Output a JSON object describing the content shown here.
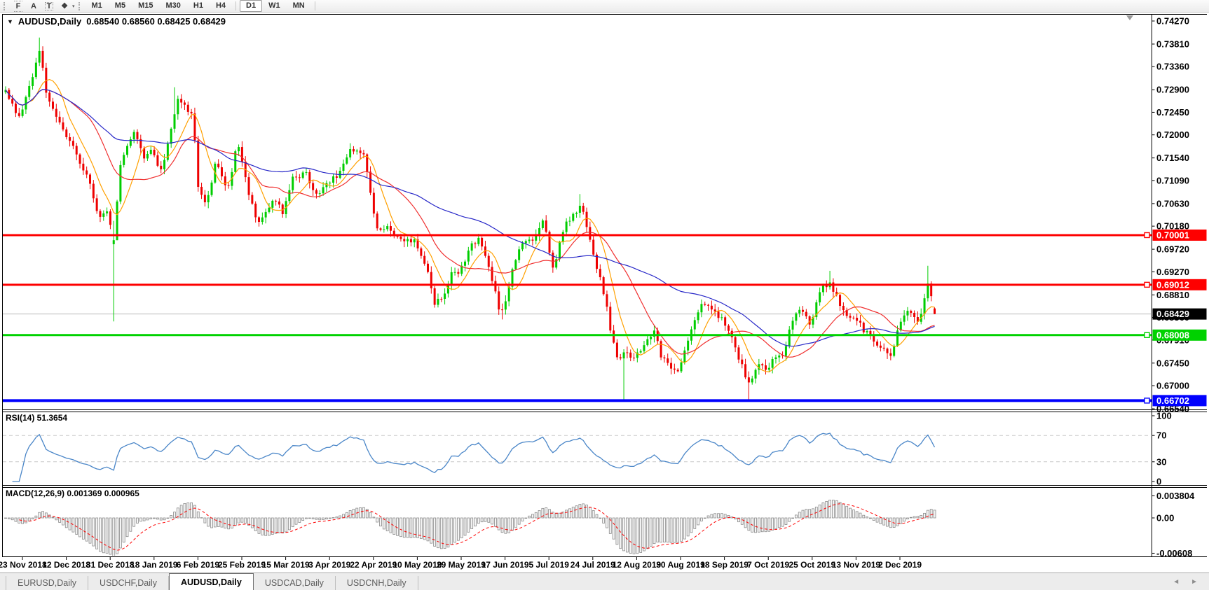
{
  "toolbar": {
    "tools": [
      {
        "name": "fibonacci-tool",
        "glyph": "F",
        "style": "fib"
      },
      {
        "name": "text-tool",
        "glyph": "A",
        "style": "plain"
      },
      {
        "name": "text-label-tool",
        "glyph": "T",
        "style": "boxed"
      },
      {
        "name": "arrows-tool",
        "glyph": "❖",
        "style": "plain"
      }
    ],
    "dropdown_caret": "▾",
    "timeframes": [
      "M1",
      "M5",
      "M15",
      "M30",
      "H1",
      "H4",
      "D1",
      "W1",
      "MN"
    ],
    "active_timeframe": "D1",
    "separators_after": [
      "H4",
      "MN"
    ]
  },
  "chart": {
    "expand_glyph": "▼",
    "symbol_text": "AUDUSD,Daily",
    "ohlc_text": "0.68540 0.68560 0.68425 0.68429"
  },
  "price_axis": {
    "labels": [
      "0.74270",
      "0.73810",
      "0.73360",
      "0.72900",
      "0.72450",
      "0.72000",
      "0.71540",
      "0.71090",
      "0.70630",
      "0.70180",
      "0.69720",
      "0.69270",
      "0.68810",
      "0.68360",
      "0.67910",
      "0.67450",
      "0.67000",
      "0.66540"
    ]
  },
  "price_lines": [
    {
      "label": "0.70001",
      "price": 0.70001,
      "color": "#fe0000",
      "thickness": 3,
      "text_color": "#ffffff"
    },
    {
      "label": "0.69012",
      "price": 0.69012,
      "color": "#fe0000",
      "thickness": 3,
      "text_color": "#ffffff"
    },
    {
      "label": "0.68008",
      "price": 0.68008,
      "color": "#00d200",
      "thickness": 3,
      "text_color": "#ffffff"
    },
    {
      "label": "0.66702",
      "price": 0.66702,
      "color": "#0000fe",
      "thickness": 4,
      "text_color": "#ffffff"
    }
  ],
  "current_price": {
    "label": "0.68429",
    "price": 0.68429,
    "line_color": "#b9b9b9",
    "box_color": "#000000",
    "text_color": "#ffffff"
  },
  "rsi": {
    "label": "RSI(14) 51.3654",
    "axis_labels": [
      {
        "text": "100",
        "value": 100
      },
      {
        "text": "70",
        "value": 70
      },
      {
        "text": "30",
        "value": 30
      },
      {
        "text": "0",
        "value": 0
      }
    ],
    "dashed_levels": [
      70,
      30
    ],
    "line_color": "#4a86c8",
    "level_color": "#c9c9c9"
  },
  "macd": {
    "label": "MACD(12,26,9) 0.001369 0.000965",
    "axis_labels": [
      {
        "text": "0.003804",
        "value": 0.003804
      },
      {
        "text": "0.00",
        "value": 0
      },
      {
        "text": "-0.00608",
        "value": -0.00608
      }
    ],
    "bar_stroke": "#8a8a8a",
    "bar_fill": "#f6f6f6",
    "signal_color": "#fe0000"
  },
  "date_axis": [
    "23 Nov 2018",
    "12 Dec 2018",
    "31 Dec 2018",
    "18 Jan 2019",
    "6 Feb 2019",
    "25 Feb 2019",
    "15 Mar 2019",
    "3 Apr 2019",
    "22 Apr 2019",
    "10 May 2019",
    "29 May 2019",
    "17 Jun 2019",
    "5 Jul 2019",
    "24 Jul 2019",
    "12 Aug 2019",
    "30 Aug 2019",
    "18 Sep 2019",
    "7 Oct 2019",
    "25 Oct 2019",
    "13 Nov 2019",
    "2 Dec 2019"
  ],
  "tabs": {
    "items": [
      "EURUSD,Daily",
      "USDCHF,Daily",
      "AUDUSD,Daily",
      "USDCAD,Daily",
      "USDCNH,Daily"
    ],
    "active": "AUDUSD,Daily",
    "left_arrow": "◄",
    "right_arrow": "►"
  },
  "chart_data": {
    "type": "candlestick",
    "symbol": "AUDUSD",
    "timeframe": "Daily",
    "open": 0.6854,
    "high": 0.6856,
    "low": 0.68425,
    "close": 0.68429,
    "y_range": [
      0.6654,
      0.7427
    ],
    "grid": false,
    "colors": {
      "bull": "#00cd00",
      "bear": "#ee0000",
      "ma_fast": "#ffa000",
      "ma_mid": "#f03030",
      "ma_slow": "#2828c8"
    },
    "moving_averages": [
      {
        "name": "fast",
        "period": 8,
        "color_key": "ma_fast"
      },
      {
        "name": "mid",
        "period": 20,
        "color_key": "ma_mid"
      },
      {
        "name": "slow",
        "period": 55,
        "color_key": "ma_slow"
      }
    ],
    "indicators": [
      {
        "name": "RSI",
        "period": 14,
        "current": 51.3654
      },
      {
        "name": "MACD",
        "fast": 12,
        "slow": 26,
        "signal": 9,
        "main_current": 0.001369,
        "signal_current": 0.000965
      }
    ],
    "price_path": [
      [
        8,
        0.7285
      ],
      [
        28,
        0.7232
      ],
      [
        43,
        0.73
      ],
      [
        57,
        0.7375
      ],
      [
        67,
        0.727
      ],
      [
        91,
        0.721
      ],
      [
        105,
        0.7175
      ],
      [
        125,
        0.7115
      ],
      [
        140,
        0.704
      ],
      [
        153,
        0.7045
      ],
      [
        162,
        0.6985
      ],
      [
        172,
        0.714
      ],
      [
        190,
        0.721
      ],
      [
        206,
        0.7155
      ],
      [
        216,
        0.717
      ],
      [
        230,
        0.7125
      ],
      [
        254,
        0.727
      ],
      [
        276,
        0.7235
      ],
      [
        281,
        0.7105
      ],
      [
        295,
        0.706
      ],
      [
        307,
        0.714
      ],
      [
        312,
        0.7135
      ],
      [
        325,
        0.709
      ],
      [
        339,
        0.7185
      ],
      [
        355,
        0.708
      ],
      [
        369,
        0.702
      ],
      [
        390,
        0.7075
      ],
      [
        404,
        0.7045
      ],
      [
        418,
        0.7115
      ],
      [
        438,
        0.7125
      ],
      [
        450,
        0.7075
      ],
      [
        467,
        0.7105
      ],
      [
        486,
        0.7125
      ],
      [
        500,
        0.7175
      ],
      [
        511,
        0.7165
      ],
      [
        520,
        0.7155
      ],
      [
        536,
        0.7015
      ],
      [
        555,
        0.7015
      ],
      [
        570,
        0.699
      ],
      [
        592,
        0.699
      ],
      [
        610,
        0.6925
      ],
      [
        620,
        0.6865
      ],
      [
        632,
        0.688
      ],
      [
        645,
        0.6925
      ],
      [
        655,
        0.692
      ],
      [
        670,
        0.6975
      ],
      [
        685,
        0.6995
      ],
      [
        700,
        0.6925
      ],
      [
        712,
        0.6855
      ],
      [
        718,
        0.6845
      ],
      [
        730,
        0.6925
      ],
      [
        745,
        0.6985
      ],
      [
        762,
        0.6995
      ],
      [
        775,
        0.703
      ],
      [
        790,
        0.693
      ],
      [
        805,
        0.702
      ],
      [
        829,
        0.706
      ],
      [
        843,
        0.698
      ],
      [
        858,
        0.6905
      ],
      [
        867,
        0.6845
      ],
      [
        872,
        0.68
      ],
      [
        882,
        0.6755
      ],
      [
        891,
        0.6765
      ],
      [
        906,
        0.6755
      ],
      [
        920,
        0.678
      ],
      [
        934,
        0.6815
      ],
      [
        944,
        0.6755
      ],
      [
        958,
        0.6735
      ],
      [
        968,
        0.673
      ],
      [
        987,
        0.681
      ],
      [
        1001,
        0.686
      ],
      [
        1011,
        0.6865
      ],
      [
        1021,
        0.6845
      ],
      [
        1031,
        0.683
      ],
      [
        1045,
        0.68
      ],
      [
        1055,
        0.675
      ],
      [
        1070,
        0.67
      ],
      [
        1080,
        0.6745
      ],
      [
        1094,
        0.673
      ],
      [
        1104,
        0.676
      ],
      [
        1118,
        0.6755
      ],
      [
        1128,
        0.682
      ],
      [
        1142,
        0.6855
      ],
      [
        1156,
        0.682
      ],
      [
        1170,
        0.689
      ],
      [
        1185,
        0.6905
      ],
      [
        1199,
        0.686
      ],
      [
        1209,
        0.684
      ],
      [
        1219,
        0.684
      ],
      [
        1233,
        0.681
      ],
      [
        1243,
        0.6795
      ],
      [
        1257,
        0.6775
      ],
      [
        1267,
        0.676
      ],
      [
        1272,
        0.6754
      ],
      [
        1282,
        0.682
      ],
      [
        1292,
        0.685
      ],
      [
        1301,
        0.684
      ],
      [
        1311,
        0.682
      ],
      [
        1320,
        0.688
      ],
      [
        1325,
        0.6905
      ],
      [
        1330,
        0.687
      ],
      [
        1337,
        0.68429
      ]
    ],
    "wick_events": [
      {
        "x": 57,
        "high": 0.7394
      },
      {
        "x": 162,
        "low": 0.6828,
        "open": 0.6982,
        "close": 0.699
      },
      {
        "x": 250,
        "high": 0.7295
      },
      {
        "x": 718,
        "low": 0.6832
      },
      {
        "x": 829,
        "high": 0.7082
      },
      {
        "x": 891,
        "low": 0.66702
      },
      {
        "x": 1070,
        "low": 0.66702
      },
      {
        "x": 1185,
        "high": 0.6929
      },
      {
        "x": 1325,
        "high": 0.6939
      }
    ]
  }
}
